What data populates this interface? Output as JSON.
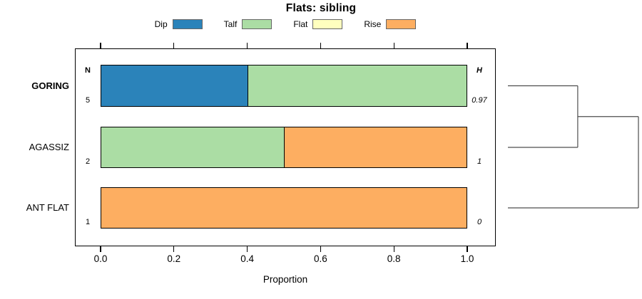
{
  "title": "Flats: sibling",
  "legend": [
    {
      "label": "Dip",
      "color": "#2b83ba"
    },
    {
      "label": "Talf",
      "color": "#abdda4"
    },
    {
      "label": "Flat",
      "color": "#ffffbf"
    },
    {
      "label": "Rise",
      "color": "#fdae61"
    }
  ],
  "columns": {
    "left_header": "N",
    "right_header": "H"
  },
  "x_axis": {
    "label": "Proportion"
  },
  "chart_data": {
    "type": "bar",
    "orientation": "horizontal",
    "stacked": true,
    "title": "Flats: sibling",
    "xlabel": "Proportion",
    "xlim": [
      0,
      1
    ],
    "xticks": [
      0.0,
      0.2,
      0.4,
      0.6,
      0.8,
      1.0
    ],
    "grid": false,
    "legend_position": "top",
    "categories": [
      "GORING",
      "AGASSIZ",
      "ANT FLAT"
    ],
    "series_colors": {
      "Dip": "#2b83ba",
      "Talf": "#abdda4",
      "Flat": "#ffffbf",
      "Rise": "#fdae61"
    },
    "rows": [
      {
        "label": "GORING",
        "emphasis": true,
        "n": "5",
        "h": "0.97",
        "segments": [
          {
            "series": "Dip",
            "value": 0.4
          },
          {
            "series": "Talf",
            "value": 0.6
          }
        ]
      },
      {
        "label": "AGASSIZ",
        "emphasis": false,
        "n": "2",
        "h": "1",
        "segments": [
          {
            "series": "Talf",
            "value": 0.5
          },
          {
            "series": "Rise",
            "value": 0.5
          }
        ]
      },
      {
        "label": "ANT FLAT",
        "emphasis": false,
        "n": "1",
        "h": "0",
        "segments": [
          {
            "series": "Rise",
            "value": 1.0
          }
        ]
      }
    ],
    "dendrogram": {
      "leaves": [
        "GORING",
        "AGASSIZ",
        "ANT FLAT"
      ],
      "merges": [
        {
          "a": {
            "leaf": 0
          },
          "b": {
            "leaf": 1
          },
          "height": 0.535
        },
        {
          "a": {
            "merge": 0
          },
          "b": {
            "leaf": 2
          },
          "height": 1.0
        }
      ],
      "line_color": "#4d4d4d"
    }
  }
}
